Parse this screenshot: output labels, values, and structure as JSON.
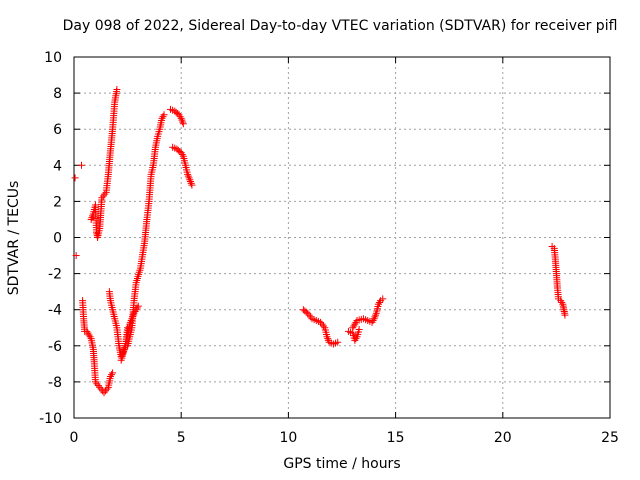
{
  "chart_data": {
    "type": "scatter",
    "title": "Day 098 of 2022, Sidereal Day-to-day VTEC variation (SDTVAR) for receiver pifl",
    "xlabel": "GPS time / hours",
    "ylabel": "SDTVAR / TECUs",
    "xlim": [
      0,
      25
    ],
    "ylim": [
      -10,
      10
    ],
    "xticks": [
      "0",
      "5",
      "10",
      "15",
      "20",
      "25"
    ],
    "yticks": [
      "-10",
      "-8",
      "-6",
      "-4",
      "-2",
      "0",
      "2",
      "4",
      "6",
      "8",
      "10"
    ],
    "grid": true,
    "marker": "plus",
    "colors": {
      "points": "#ff0000",
      "grid": "#a0a0a0",
      "axis": "#000000"
    },
    "series": [
      {
        "points": [
          [
            0.05,
            3.3
          ],
          [
            0.1,
            -1.0
          ],
          [
            0.35,
            4.0
          ],
          [
            0.4,
            -3.5
          ],
          [
            0.45,
            -4.5
          ],
          [
            0.5,
            -5.2
          ]
        ]
      },
      {
        "points": [
          [
            0.6,
            -5.2
          ],
          [
            0.8,
            -5.6
          ],
          [
            0.9,
            -6.2
          ],
          [
            0.95,
            -7.0
          ],
          [
            1.0,
            -8.0
          ],
          [
            1.2,
            -8.3
          ],
          [
            1.4,
            -8.6
          ],
          [
            1.6,
            -8.3
          ],
          [
            1.7,
            -7.7
          ],
          [
            1.8,
            -7.5
          ]
        ]
      },
      {
        "points": [
          [
            0.8,
            1.0
          ],
          [
            0.9,
            1.3
          ],
          [
            1.0,
            1.8
          ],
          [
            1.05,
            0.3
          ],
          [
            1.1,
            0.0
          ],
          [
            1.2,
            0.5
          ],
          [
            1.3,
            2.2
          ],
          [
            1.5,
            2.5
          ],
          [
            1.6,
            3.5
          ],
          [
            1.7,
            4.8
          ],
          [
            1.8,
            6.0
          ],
          [
            1.9,
            7.5
          ],
          [
            2.0,
            8.2
          ]
        ]
      },
      {
        "points": [
          [
            1.65,
            -3.0
          ],
          [
            1.7,
            -3.5
          ],
          [
            1.8,
            -4.0
          ],
          [
            1.9,
            -4.5
          ],
          [
            2.0,
            -5.0
          ],
          [
            2.1,
            -6.0
          ],
          [
            2.2,
            -6.6
          ],
          [
            2.3,
            -6.3
          ],
          [
            2.4,
            -6.0
          ],
          [
            2.5,
            -5.0
          ]
        ]
      },
      {
        "points": [
          [
            2.2,
            -6.8
          ],
          [
            2.4,
            -6.0
          ],
          [
            2.5,
            -5.4
          ],
          [
            2.6,
            -4.8
          ],
          [
            2.7,
            -4.5
          ],
          [
            2.8,
            -4.2
          ],
          [
            2.9,
            -4.0
          ],
          [
            3.0,
            -3.8
          ]
        ]
      },
      {
        "points": [
          [
            2.5,
            -6.0
          ],
          [
            2.7,
            -5.0
          ],
          [
            2.8,
            -3.5
          ],
          [
            2.9,
            -2.5
          ],
          [
            3.1,
            -1.7
          ],
          [
            3.3,
            -0.2
          ],
          [
            3.4,
            1.0
          ],
          [
            3.5,
            2.0
          ],
          [
            3.6,
            3.5
          ],
          [
            3.7,
            4.0
          ],
          [
            3.8,
            5.0
          ],
          [
            3.9,
            5.6
          ],
          [
            4.0,
            6.0
          ],
          [
            4.1,
            6.6
          ],
          [
            4.2,
            6.8
          ]
        ]
      },
      {
        "points": [
          [
            4.5,
            7.1
          ],
          [
            4.7,
            7.0
          ],
          [
            4.9,
            6.8
          ],
          [
            5.0,
            6.6
          ],
          [
            5.1,
            6.3
          ]
        ]
      },
      {
        "points": [
          [
            4.6,
            5.0
          ],
          [
            4.8,
            4.9
          ],
          [
            5.0,
            4.7
          ],
          [
            5.1,
            4.5
          ],
          [
            5.2,
            4.0
          ],
          [
            5.3,
            3.5
          ],
          [
            5.4,
            3.2
          ],
          [
            5.5,
            2.9
          ]
        ]
      },
      {
        "points": [
          [
            10.7,
            -4.0
          ],
          [
            10.9,
            -4.2
          ],
          [
            11.1,
            -4.5
          ],
          [
            11.3,
            -4.6
          ],
          [
            11.5,
            -4.7
          ],
          [
            11.7,
            -5.0
          ],
          [
            11.8,
            -5.5
          ],
          [
            11.9,
            -5.8
          ],
          [
            12.1,
            -5.9
          ],
          [
            12.3,
            -5.8
          ]
        ]
      },
      {
        "points": [
          [
            12.8,
            -5.2
          ],
          [
            13.0,
            -5.3
          ],
          [
            13.1,
            -5.7
          ],
          [
            13.2,
            -5.5
          ],
          [
            13.3,
            -5.1
          ]
        ]
      },
      {
        "points": [
          [
            13.0,
            -5.0
          ],
          [
            13.2,
            -4.6
          ],
          [
            13.5,
            -4.5
          ],
          [
            13.7,
            -4.6
          ],
          [
            13.9,
            -4.7
          ],
          [
            14.0,
            -4.5
          ],
          [
            14.1,
            -4.2
          ],
          [
            14.2,
            -3.7
          ],
          [
            14.3,
            -3.5
          ],
          [
            14.4,
            -3.4
          ]
        ]
      },
      {
        "points": [
          [
            22.3,
            -0.5
          ],
          [
            22.4,
            -0.6
          ],
          [
            22.45,
            -1.2
          ],
          [
            22.5,
            -2.0
          ],
          [
            22.55,
            -2.8
          ],
          [
            22.6,
            -3.4
          ],
          [
            22.7,
            -3.5
          ],
          [
            22.8,
            -3.7
          ],
          [
            22.85,
            -4.0
          ],
          [
            22.9,
            -4.3
          ]
        ]
      }
    ]
  }
}
